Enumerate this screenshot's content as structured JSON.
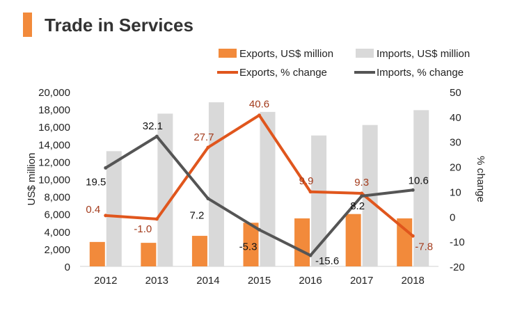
{
  "title": "Trade in Services",
  "chart_data": {
    "type": "bar",
    "categories": [
      "2012",
      "2013",
      "2014",
      "2015",
      "2016",
      "2017",
      "2018"
    ],
    "series": [
      {
        "name": "Exports, US$ million",
        "kind": "bar",
        "axis": "left",
        "color": "#f28a3b",
        "values": [
          2800,
          2700,
          3500,
          5000,
          5500,
          6000,
          5500
        ]
      },
      {
        "name": "Imports, US$ million",
        "kind": "bar",
        "axis": "left",
        "color": "#d9d9d9",
        "values": [
          13200,
          17500,
          18800,
          17700,
          15000,
          16200,
          17900
        ]
      },
      {
        "name": "Exports, % change",
        "kind": "line",
        "axis": "right",
        "color": "#e0561d",
        "values": [
          0.4,
          -1.0,
          27.7,
          40.6,
          9.9,
          9.3,
          -7.8
        ],
        "labels": [
          "0.4",
          "-1.0",
          "27.7",
          "40.6",
          "9.9",
          "9.3",
          "-7.8"
        ]
      },
      {
        "name": "Imports, % change",
        "kind": "line",
        "axis": "right",
        "color": "#555555",
        "values": [
          19.5,
          32.1,
          7.2,
          -5.3,
          -15.6,
          8.2,
          10.6
        ],
        "labels": [
          "19.5",
          "32.1",
          "7.2",
          "-5.3",
          "-15.6",
          "8.2",
          "10.6"
        ]
      }
    ],
    "ylabel": "US$ million",
    "y2label": "% change",
    "ylim": [
      0,
      20000
    ],
    "y2lim": [
      -20,
      50
    ],
    "yticks": [
      "0",
      "2,000",
      "4,000",
      "6,000",
      "8,000",
      "10,000",
      "12,000",
      "14,000",
      "16,000",
      "18,000",
      "20,000"
    ],
    "y2ticks": [
      "-20",
      "-10",
      "0",
      "10",
      "20",
      "30",
      "40",
      "50"
    ],
    "grid": false,
    "legend_position": "top-right"
  }
}
